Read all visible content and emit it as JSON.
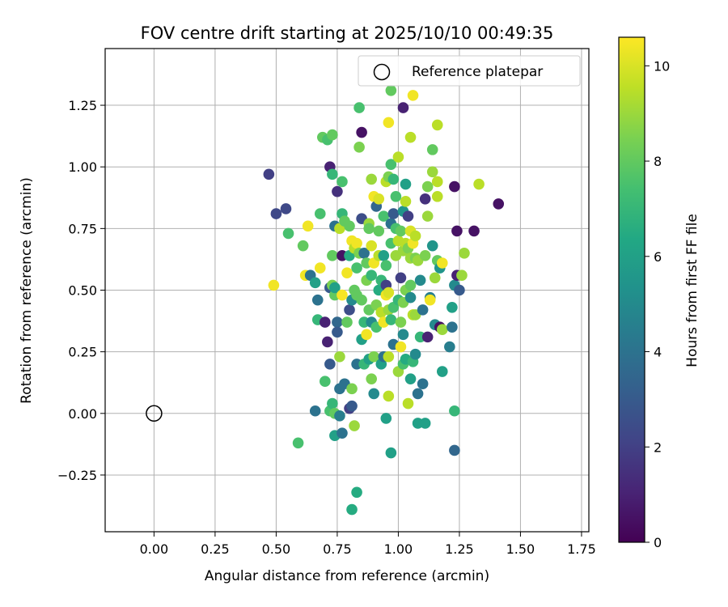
{
  "chart_data": {
    "type": "scatter",
    "title": "FOV centre drift starting at 2025/10/10 00:49:35",
    "xlabel": "Angular distance from reference (arcmin)",
    "ylabel": "Rotation from reference (arcmin)",
    "xlim": [
      -0.2,
      1.78
    ],
    "ylim": [
      -0.48,
      1.48
    ],
    "x_ticks": [
      "0.00",
      "0.25",
      "0.50",
      "0.75",
      "1.00",
      "1.25",
      "1.50",
      "1.75"
    ],
    "y_ticks": [
      "−0.25",
      "0.00",
      "0.25",
      "0.50",
      "0.75",
      "1.00",
      "1.25"
    ],
    "grid": true,
    "legend": {
      "placement": "top-right",
      "entries": [
        {
          "label": "Reference platepar",
          "marker": "open-circle"
        }
      ]
    },
    "reference_point": {
      "x": 0.0,
      "y": 0.0
    },
    "colorbar": {
      "label": "Hours from first FF file",
      "range": [
        0,
        10.6
      ],
      "ticks": [
        "0",
        "2",
        "4",
        "6",
        "8",
        "10"
      ],
      "colormap": "viridis"
    },
    "points": [
      {
        "x": 0.47,
        "y": 0.97,
        "c": 2.0
      },
      {
        "x": 0.5,
        "y": 0.81,
        "c": 2.3
      },
      {
        "x": 0.54,
        "y": 0.83,
        "c": 2.3
      },
      {
        "x": 0.55,
        "y": 0.73,
        "c": 7.5
      },
      {
        "x": 0.49,
        "y": 0.52,
        "c": 10.4
      },
      {
        "x": 0.59,
        "y": -0.12,
        "c": 7.5
      },
      {
        "x": 0.61,
        "y": 0.68,
        "c": 8.0
      },
      {
        "x": 0.62,
        "y": 0.56,
        "c": 10.4
      },
      {
        "x": 0.63,
        "y": 0.76,
        "c": 10.4
      },
      {
        "x": 0.64,
        "y": 0.56,
        "c": 4.0
      },
      {
        "x": 0.66,
        "y": 0.01,
        "c": 4.0
      },
      {
        "x": 0.66,
        "y": 0.53,
        "c": 6.0
      },
      {
        "x": 0.67,
        "y": 0.46,
        "c": 4.0
      },
      {
        "x": 0.67,
        "y": 0.38,
        "c": 7.0
      },
      {
        "x": 0.68,
        "y": 0.81,
        "c": 7.5
      },
      {
        "x": 0.68,
        "y": 0.59,
        "c": 10.4
      },
      {
        "x": 0.69,
        "y": 1.12,
        "c": 8.0
      },
      {
        "x": 0.7,
        "y": 0.37,
        "c": 1.0
      },
      {
        "x": 0.7,
        "y": 0.13,
        "c": 7.5
      },
      {
        "x": 0.71,
        "y": 0.29,
        "c": 1.0
      },
      {
        "x": 0.71,
        "y": 1.11,
        "c": 7.5
      },
      {
        "x": 0.72,
        "y": 0.01,
        "c": 7.5
      },
      {
        "x": 0.72,
        "y": 0.2,
        "c": 3.0
      },
      {
        "x": 0.72,
        "y": 1.0,
        "c": 1.0
      },
      {
        "x": 0.72,
        "y": 0.51,
        "c": 3.0
      },
      {
        "x": 0.73,
        "y": 1.13,
        "c": 8.0
      },
      {
        "x": 0.73,
        "y": 0.97,
        "c": 7.0
      },
      {
        "x": 0.73,
        "y": 0.04,
        "c": 7.0
      },
      {
        "x": 0.73,
        "y": 0.52,
        "c": 8.5
      },
      {
        "x": 0.73,
        "y": 0.64,
        "c": 8.0
      },
      {
        "x": 0.74,
        "y": 0.0,
        "c": 8.0
      },
      {
        "x": 0.74,
        "y": 0.76,
        "c": 4.0
      },
      {
        "x": 0.74,
        "y": 0.48,
        "c": 8.0
      },
      {
        "x": 0.74,
        "y": 0.51,
        "c": 6.0
      },
      {
        "x": 0.74,
        "y": -0.09,
        "c": 6.0
      },
      {
        "x": 0.75,
        "y": 0.9,
        "c": 1.5
      },
      {
        "x": 0.75,
        "y": 0.37,
        "c": 3.5
      },
      {
        "x": 0.75,
        "y": 0.33,
        "c": 3.0
      },
      {
        "x": 0.76,
        "y": 0.75,
        "c": 9.5
      },
      {
        "x": 0.76,
        "y": 0.1,
        "c": 4.0
      },
      {
        "x": 0.76,
        "y": -0.01,
        "c": 4.5
      },
      {
        "x": 0.76,
        "y": 0.23,
        "c": 9.0
      },
      {
        "x": 0.77,
        "y": 0.94,
        "c": 7.5
      },
      {
        "x": 0.77,
        "y": 0.81,
        "c": 7.0
      },
      {
        "x": 0.77,
        "y": 0.64,
        "c": 0.5
      },
      {
        "x": 0.77,
        "y": 0.48,
        "c": 10.5
      },
      {
        "x": 0.77,
        "y": -0.08,
        "c": 4.0
      },
      {
        "x": 0.78,
        "y": 0.12,
        "c": 4.0
      },
      {
        "x": 0.78,
        "y": 0.78,
        "c": 8.0
      },
      {
        "x": 0.79,
        "y": 0.57,
        "c": 10.4
      },
      {
        "x": 0.79,
        "y": 0.37,
        "c": 8.0
      },
      {
        "x": 0.8,
        "y": 0.76,
        "c": 8.0
      },
      {
        "x": 0.8,
        "y": 0.42,
        "c": 2.5
      },
      {
        "x": 0.8,
        "y": 0.64,
        "c": 6.5
      },
      {
        "x": 0.8,
        "y": 0.02,
        "c": 2.0
      },
      {
        "x": 0.81,
        "y": 0.7,
        "c": 10.4
      },
      {
        "x": 0.81,
        "y": 0.03,
        "c": 3.0
      },
      {
        "x": 0.81,
        "y": 0.1,
        "c": 8.5
      },
      {
        "x": 0.81,
        "y": 0.46,
        "c": 5.0
      },
      {
        "x": 0.81,
        "y": -0.39,
        "c": 6.5
      },
      {
        "x": 0.82,
        "y": -0.05,
        "c": 9.0
      },
      {
        "x": 0.82,
        "y": 0.5,
        "c": 8.0
      },
      {
        "x": 0.82,
        "y": 0.67,
        "c": 9.5
      },
      {
        "x": 0.83,
        "y": 0.69,
        "c": 10.4
      },
      {
        "x": 0.83,
        "y": 0.2,
        "c": 4.0
      },
      {
        "x": 0.83,
        "y": 0.59,
        "c": 7.5
      },
      {
        "x": 0.83,
        "y": -0.32,
        "c": 6.5
      },
      {
        "x": 0.83,
        "y": 0.48,
        "c": 8.0
      },
      {
        "x": 0.84,
        "y": 1.24,
        "c": 7.5
      },
      {
        "x": 0.84,
        "y": 1.08,
        "c": 8.5
      },
      {
        "x": 0.84,
        "y": 0.65,
        "c": 8.5
      },
      {
        "x": 0.85,
        "y": 0.79,
        "c": 2.5
      },
      {
        "x": 0.85,
        "y": 1.14,
        "c": 0.5
      },
      {
        "x": 0.85,
        "y": 0.46,
        "c": 8.0
      },
      {
        "x": 0.85,
        "y": 0.3,
        "c": 6.0
      },
      {
        "x": 0.86,
        "y": 0.37,
        "c": 7.0
      },
      {
        "x": 0.86,
        "y": 0.65,
        "c": 4.0
      },
      {
        "x": 0.86,
        "y": 0.2,
        "c": 7.0
      },
      {
        "x": 0.87,
        "y": 0.61,
        "c": 8.0
      },
      {
        "x": 0.87,
        "y": 0.32,
        "c": 10.4
      },
      {
        "x": 0.87,
        "y": 0.54,
        "c": 8.5
      },
      {
        "x": 0.88,
        "y": 0.77,
        "c": 9.0
      },
      {
        "x": 0.88,
        "y": 0.75,
        "c": 8.0
      },
      {
        "x": 0.88,
        "y": 0.42,
        "c": 8.0
      },
      {
        "x": 0.88,
        "y": 0.22,
        "c": 6.0
      },
      {
        "x": 0.89,
        "y": 0.14,
        "c": 8.5
      },
      {
        "x": 0.89,
        "y": 0.37,
        "c": 5.0
      },
      {
        "x": 0.89,
        "y": 0.68,
        "c": 10.0
      },
      {
        "x": 0.89,
        "y": 0.56,
        "c": 7.0
      },
      {
        "x": 0.89,
        "y": 0.95,
        "c": 9.0
      },
      {
        "x": 0.9,
        "y": 0.61,
        "c": 10.4
      },
      {
        "x": 0.9,
        "y": 0.88,
        "c": 10.4
      },
      {
        "x": 0.9,
        "y": 0.08,
        "c": 5.0
      },
      {
        "x": 0.9,
        "y": 0.23,
        "c": 8.5
      },
      {
        "x": 0.91,
        "y": 0.84,
        "c": 3.5
      },
      {
        "x": 0.91,
        "y": 0.44,
        "c": 8.5
      },
      {
        "x": 0.91,
        "y": 0.35,
        "c": 7.5
      },
      {
        "x": 0.92,
        "y": 0.5,
        "c": 6.5
      },
      {
        "x": 0.92,
        "y": 0.74,
        "c": 8.0
      },
      {
        "x": 0.92,
        "y": 0.87,
        "c": 10.0
      },
      {
        "x": 0.92,
        "y": 0.64,
        "c": 9.5
      },
      {
        "x": 0.93,
        "y": 0.41,
        "c": 9.5
      },
      {
        "x": 0.93,
        "y": 0.2,
        "c": 6.0
      },
      {
        "x": 0.93,
        "y": 0.54,
        "c": 7.0
      },
      {
        "x": 0.94,
        "y": 0.37,
        "c": 10.4
      },
      {
        "x": 0.94,
        "y": 0.64,
        "c": 6.0
      },
      {
        "x": 0.94,
        "y": 0.23,
        "c": 4.0
      },
      {
        "x": 0.94,
        "y": 0.8,
        "c": 7.5
      },
      {
        "x": 0.95,
        "y": 0.94,
        "c": 9.5
      },
      {
        "x": 0.95,
        "y": 0.6,
        "c": 7.5
      },
      {
        "x": 0.95,
        "y": 0.48,
        "c": 10.4
      },
      {
        "x": 0.95,
        "y": 0.52,
        "c": 2.0
      },
      {
        "x": 0.95,
        "y": -0.02,
        "c": 6.0
      },
      {
        "x": 0.96,
        "y": 0.07,
        "c": 9.5
      },
      {
        "x": 0.96,
        "y": 0.96,
        "c": 8.5
      },
      {
        "x": 0.96,
        "y": 1.18,
        "c": 10.4
      },
      {
        "x": 0.96,
        "y": 0.23,
        "c": 9.5
      },
      {
        "x": 0.96,
        "y": 0.42,
        "c": 9.0
      },
      {
        "x": 0.96,
        "y": 0.49,
        "c": 10.0
      },
      {
        "x": 0.97,
        "y": 0.77,
        "c": 4.0
      },
      {
        "x": 0.97,
        "y": 1.31,
        "c": 8.0
      },
      {
        "x": 0.97,
        "y": 1.01,
        "c": 7.5
      },
      {
        "x": 0.97,
        "y": 0.69,
        "c": 7.5
      },
      {
        "x": 0.97,
        "y": -0.16,
        "c": 6.0
      },
      {
        "x": 0.97,
        "y": 0.38,
        "c": 7.0
      },
      {
        "x": 0.98,
        "y": 0.28,
        "c": 4.0
      },
      {
        "x": 0.98,
        "y": 0.95,
        "c": 7.0
      },
      {
        "x": 0.98,
        "y": 0.81,
        "c": 3.0
      },
      {
        "x": 0.98,
        "y": 0.43,
        "c": 7.5
      },
      {
        "x": 0.99,
        "y": 0.75,
        "c": 7.5
      },
      {
        "x": 0.99,
        "y": 0.88,
        "c": 7.5
      },
      {
        "x": 0.99,
        "y": 0.64,
        "c": 9.0
      },
      {
        "x": 1.0,
        "y": 1.04,
        "c": 9.5
      },
      {
        "x": 1.0,
        "y": 0.7,
        "c": 9.5
      },
      {
        "x": 1.0,
        "y": 0.46,
        "c": 7.0
      },
      {
        "x": 1.0,
        "y": 0.17,
        "c": 9.0
      },
      {
        "x": 1.01,
        "y": 0.27,
        "c": 10.4
      },
      {
        "x": 1.01,
        "y": 0.55,
        "c": 2.0
      },
      {
        "x": 1.01,
        "y": 0.74,
        "c": 8.0
      },
      {
        "x": 1.01,
        "y": 0.37,
        "c": 8.5
      },
      {
        "x": 1.02,
        "y": 1.24,
        "c": 1.0
      },
      {
        "x": 1.02,
        "y": 0.82,
        "c": 5.5
      },
      {
        "x": 1.02,
        "y": 0.66,
        "c": 9.0
      },
      {
        "x": 1.02,
        "y": 0.45,
        "c": 8.5
      },
      {
        "x": 1.02,
        "y": 0.2,
        "c": 7.5
      },
      {
        "x": 1.02,
        "y": 0.32,
        "c": 5.0
      },
      {
        "x": 1.03,
        "y": 0.86,
        "c": 9.5
      },
      {
        "x": 1.03,
        "y": 0.93,
        "c": 6.0
      },
      {
        "x": 1.03,
        "y": 0.69,
        "c": 9.5
      },
      {
        "x": 1.03,
        "y": 0.5,
        "c": 8.5
      },
      {
        "x": 1.03,
        "y": 0.22,
        "c": 6.5
      },
      {
        "x": 1.04,
        "y": 0.8,
        "c": 2.0
      },
      {
        "x": 1.04,
        "y": 0.04,
        "c": 9.5
      },
      {
        "x": 1.04,
        "y": 0.67,
        "c": 8.5
      },
      {
        "x": 1.05,
        "y": 1.12,
        "c": 9.5
      },
      {
        "x": 1.05,
        "y": 0.74,
        "c": 10.0
      },
      {
        "x": 1.05,
        "y": 0.63,
        "c": 9.0
      },
      {
        "x": 1.05,
        "y": 0.52,
        "c": 8.0
      },
      {
        "x": 1.05,
        "y": 0.14,
        "c": 6.0
      },
      {
        "x": 1.05,
        "y": 0.47,
        "c": 5.0
      },
      {
        "x": 1.06,
        "y": 0.69,
        "c": 10.4
      },
      {
        "x": 1.06,
        "y": 0.4,
        "c": 9.5
      },
      {
        "x": 1.06,
        "y": 0.21,
        "c": 7.0
      },
      {
        "x": 1.06,
        "y": 1.29,
        "c": 10.4
      },
      {
        "x": 1.07,
        "y": 0.72,
        "c": 9.5
      },
      {
        "x": 1.07,
        "y": 0.63,
        "c": 8.5
      },
      {
        "x": 1.07,
        "y": 0.4,
        "c": 9.0
      },
      {
        "x": 1.07,
        "y": 0.24,
        "c": 5.0
      },
      {
        "x": 1.08,
        "y": 0.62,
        "c": 9.0
      },
      {
        "x": 1.08,
        "y": 0.08,
        "c": 4.0
      },
      {
        "x": 1.08,
        "y": -0.04,
        "c": 6.0
      },
      {
        "x": 1.09,
        "y": 0.54,
        "c": 5.0
      },
      {
        "x": 1.09,
        "y": 0.31,
        "c": 7.0
      },
      {
        "x": 1.1,
        "y": 0.42,
        "c": 4.0
      },
      {
        "x": 1.1,
        "y": 0.12,
        "c": 4.0
      },
      {
        "x": 1.11,
        "y": 0.87,
        "c": 1.5
      },
      {
        "x": 1.11,
        "y": -0.04,
        "c": 6.0
      },
      {
        "x": 1.11,
        "y": 0.64,
        "c": 8.5
      },
      {
        "x": 1.12,
        "y": 0.92,
        "c": 8.5
      },
      {
        "x": 1.12,
        "y": 0.8,
        "c": 9.0
      },
      {
        "x": 1.12,
        "y": 0.31,
        "c": 1.0
      },
      {
        "x": 1.13,
        "y": 0.47,
        "c": 4.5
      },
      {
        "x": 1.13,
        "y": 0.46,
        "c": 10.4
      },
      {
        "x": 1.14,
        "y": 0.98,
        "c": 9.0
      },
      {
        "x": 1.14,
        "y": 0.68,
        "c": 5.5
      },
      {
        "x": 1.14,
        "y": 1.07,
        "c": 8.0
      },
      {
        "x": 1.15,
        "y": 0.36,
        "c": 5.0
      },
      {
        "x": 1.15,
        "y": 0.55,
        "c": 9.0
      },
      {
        "x": 1.16,
        "y": 1.17,
        "c": 9.5
      },
      {
        "x": 1.16,
        "y": 0.94,
        "c": 9.5
      },
      {
        "x": 1.16,
        "y": 0.88,
        "c": 9.5
      },
      {
        "x": 1.16,
        "y": 0.62,
        "c": 8.0
      },
      {
        "x": 1.17,
        "y": 0.35,
        "c": 0.5
      },
      {
        "x": 1.17,
        "y": 0.59,
        "c": 5.5
      },
      {
        "x": 1.18,
        "y": 0.17,
        "c": 6.0
      },
      {
        "x": 1.18,
        "y": 0.61,
        "c": 10.4
      },
      {
        "x": 1.18,
        "y": 0.34,
        "c": 9.0
      },
      {
        "x": 1.21,
        "y": 0.27,
        "c": 4.5
      },
      {
        "x": 1.22,
        "y": 0.43,
        "c": 6.0
      },
      {
        "x": 1.22,
        "y": 0.35,
        "c": 4.0
      },
      {
        "x": 1.23,
        "y": 0.92,
        "c": 0.5
      },
      {
        "x": 1.23,
        "y": 0.52,
        "c": 5.0
      },
      {
        "x": 1.23,
        "y": 0.01,
        "c": 7.0
      },
      {
        "x": 1.23,
        "y": -0.15,
        "c": 3.5
      },
      {
        "x": 1.24,
        "y": 0.74,
        "c": 0.5
      },
      {
        "x": 1.24,
        "y": 0.56,
        "c": 1.0
      },
      {
        "x": 1.25,
        "y": 0.5,
        "c": 3.0
      },
      {
        "x": 1.26,
        "y": 0.56,
        "c": 9.0
      },
      {
        "x": 1.27,
        "y": 0.65,
        "c": 9.0
      },
      {
        "x": 1.31,
        "y": 0.74,
        "c": 0.5
      },
      {
        "x": 1.33,
        "y": 0.93,
        "c": 9.5
      },
      {
        "x": 1.41,
        "y": 0.85,
        "c": 0.5
      }
    ]
  }
}
